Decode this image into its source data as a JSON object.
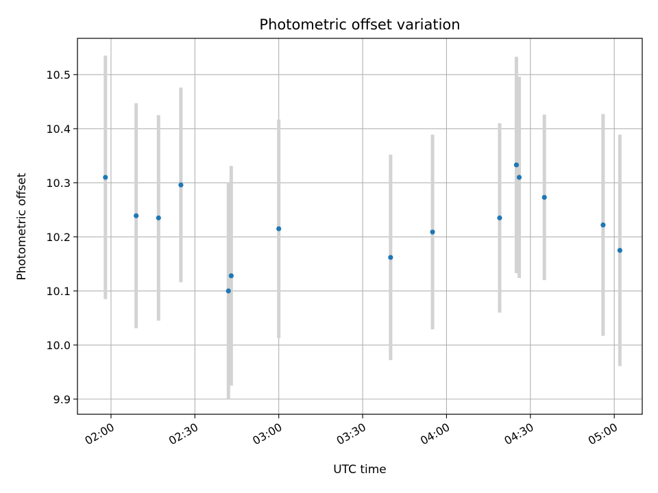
{
  "chart_data": {
    "type": "scatter",
    "title": "Photometric offset variation",
    "xlabel": "UTC time",
    "ylabel": "Photometric offset",
    "x_ticks": [
      "02:00",
      "02:30",
      "03:00",
      "03:30",
      "04:00",
      "04:30",
      "05:00"
    ],
    "y_ticks": [
      9.9,
      10.0,
      10.1,
      10.2,
      10.3,
      10.4,
      10.5
    ],
    "xlim": [
      "01:48",
      "05:10"
    ],
    "ylim": [
      9.872,
      10.567
    ],
    "grid": true,
    "marker_color": "#1f77b4",
    "errorbar_color": "#d3d3d3",
    "series": [
      {
        "points": [
          {
            "x": "01:58",
            "y": 10.31,
            "err": 0.225
          },
          {
            "x": "02:09",
            "y": 10.239,
            "err": 0.208
          },
          {
            "x": "02:17",
            "y": 10.235,
            "err": 0.19
          },
          {
            "x": "02:25",
            "y": 10.296,
            "err": 0.18
          },
          {
            "x": "02:42",
            "y": 10.1,
            "err": 0.2
          },
          {
            "x": "02:43",
            "y": 10.128,
            "err": 0.203
          },
          {
            "x": "03:00",
            "y": 10.215,
            "err": 0.202
          },
          {
            "x": "03:40",
            "y": 10.162,
            "err": 0.19
          },
          {
            "x": "03:55",
            "y": 10.209,
            "err": 0.18
          },
          {
            "x": "04:19",
            "y": 10.235,
            "err": 0.175
          },
          {
            "x": "04:25",
            "y": 10.333,
            "err": 0.2
          },
          {
            "x": "04:26",
            "y": 10.31,
            "err": 0.186
          },
          {
            "x": "04:35",
            "y": 10.273,
            "err": 0.153
          },
          {
            "x": "04:56",
            "y": 10.222,
            "err": 0.205
          },
          {
            "x": "05:02",
            "y": 10.175,
            "err": 0.214
          }
        ]
      }
    ]
  }
}
